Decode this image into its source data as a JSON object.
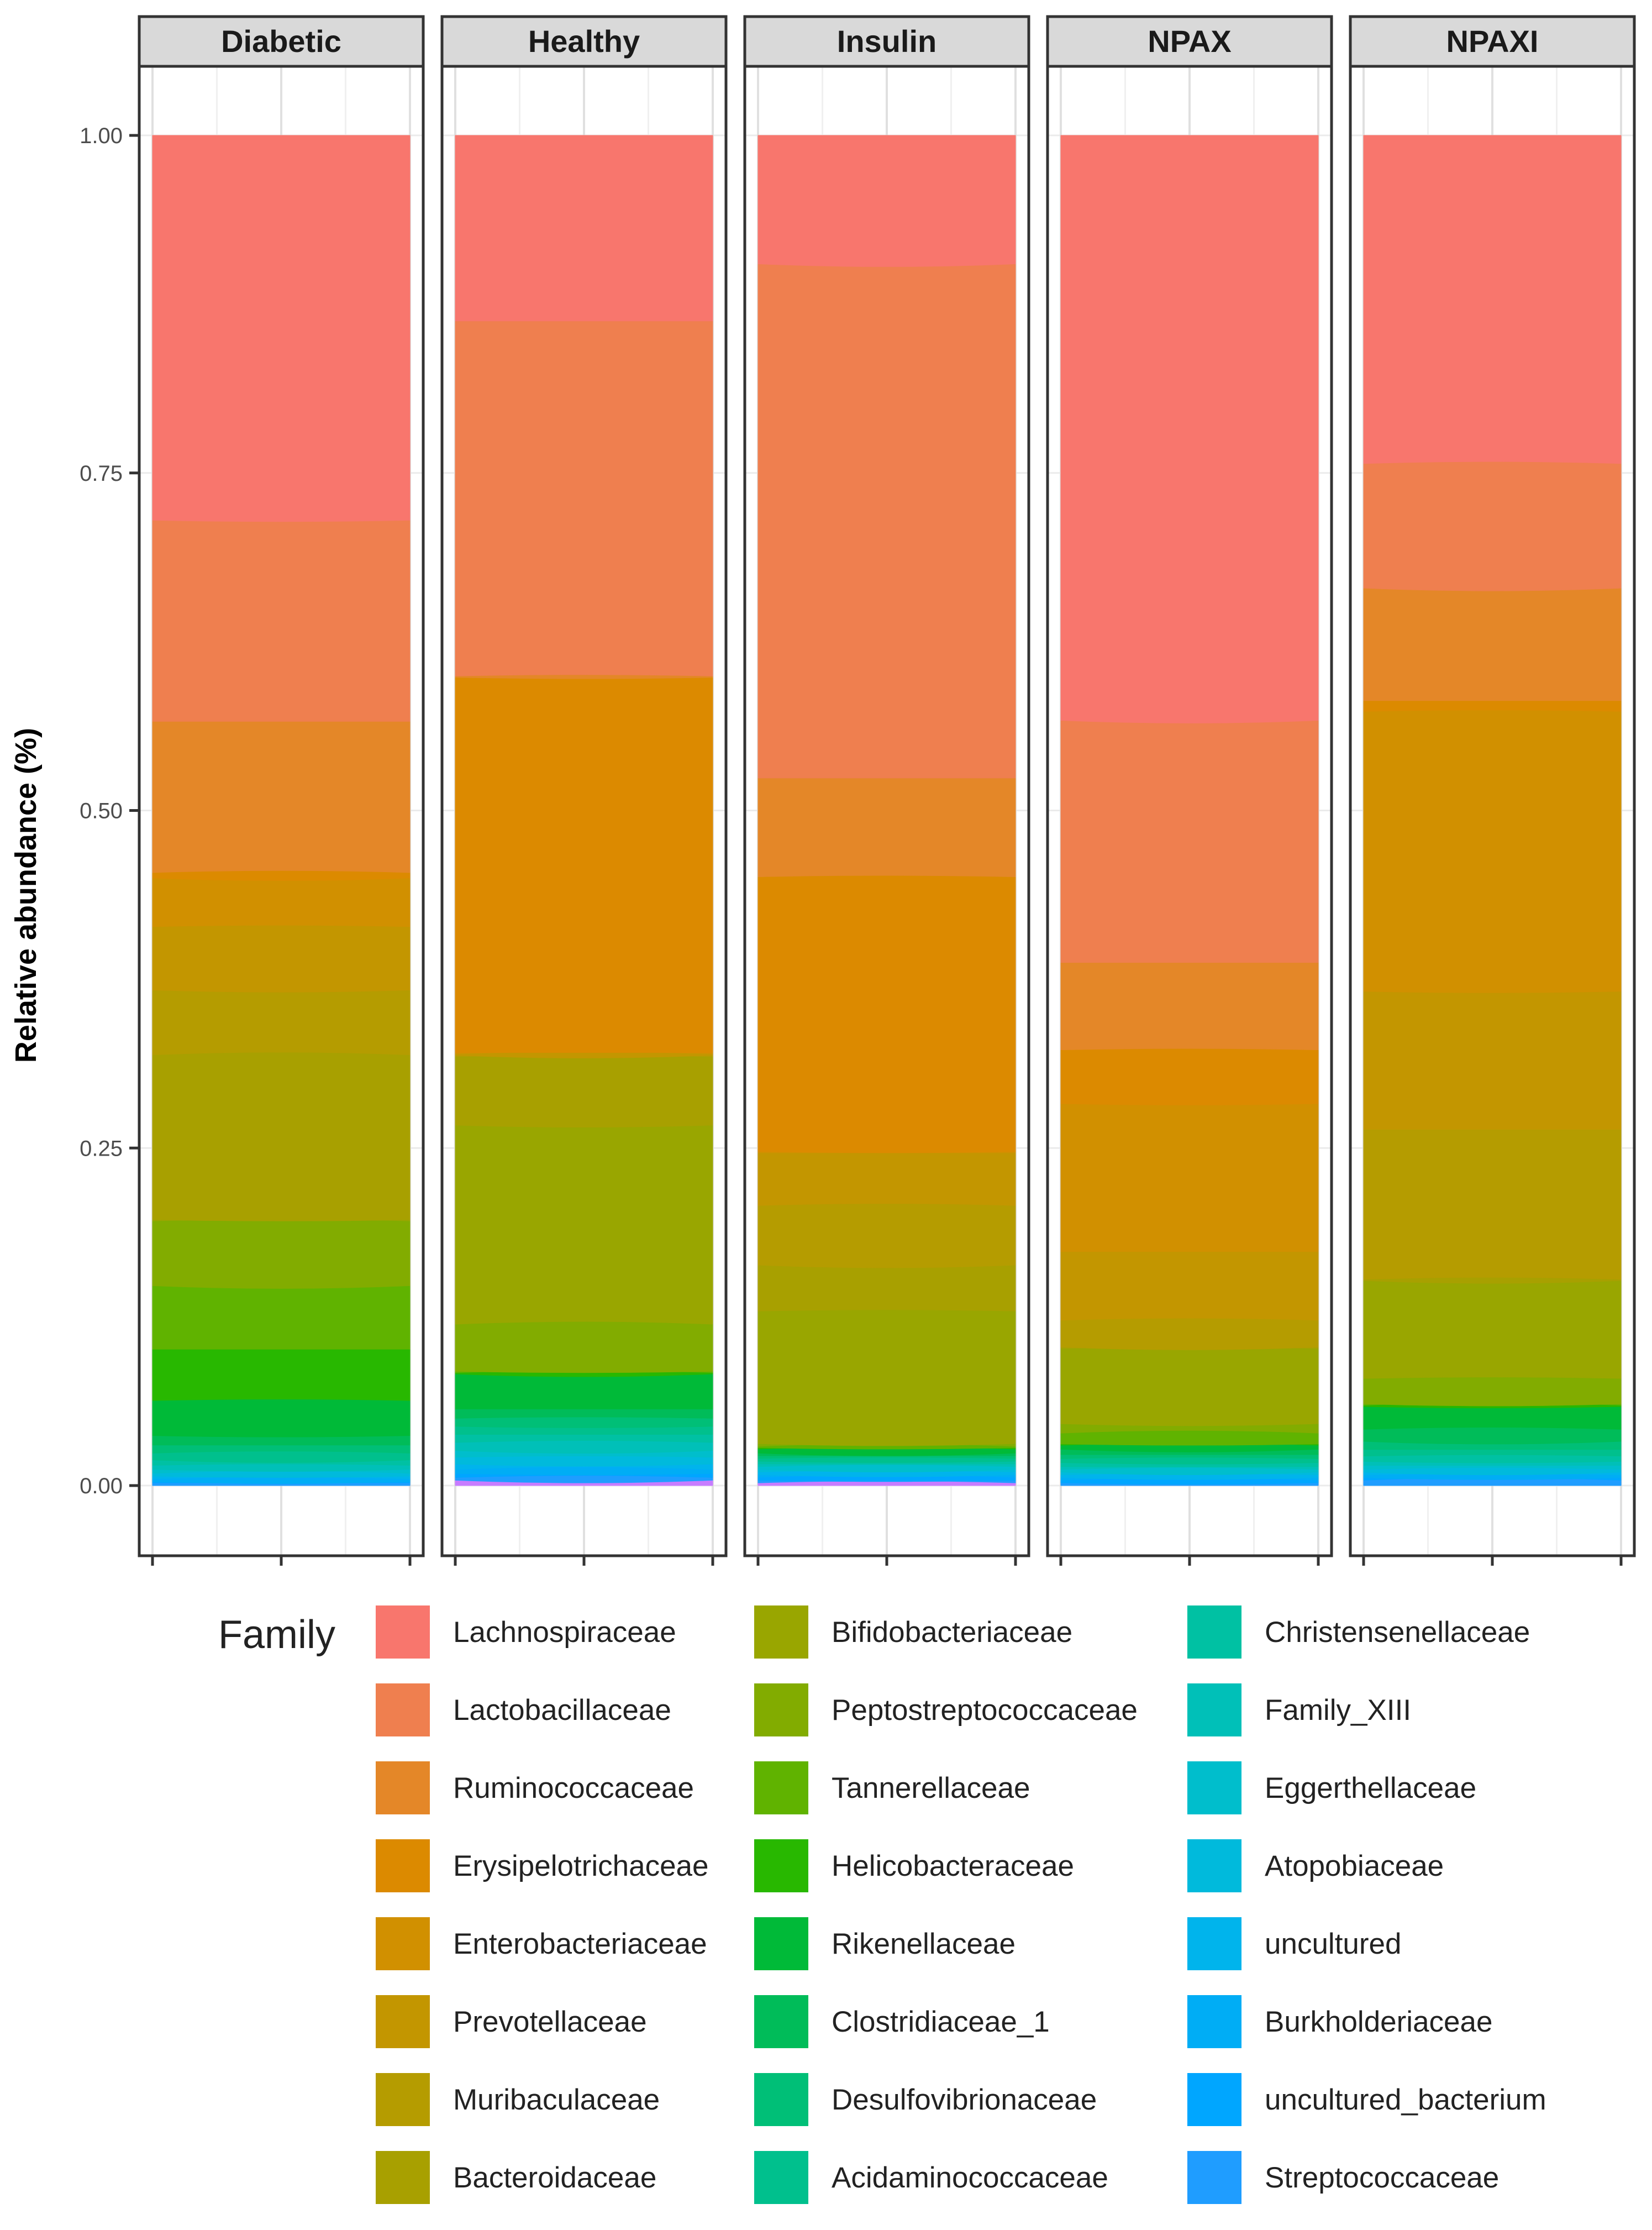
{
  "chart_data": {
    "type": "stacked_area_facets",
    "ylabel": "Relative abundance (%)",
    "ylim": [
      0,
      1.0
    ],
    "yticks": [
      {
        "value": 0.0,
        "label": "0.00"
      },
      {
        "value": 0.25,
        "label": "0.25"
      },
      {
        "value": 0.5,
        "label": "0.50"
      },
      {
        "value": 0.75,
        "label": "0.75"
      },
      {
        "value": 1.0,
        "label": "1.00"
      }
    ],
    "legend": {
      "title": "Family",
      "position": "bottom"
    },
    "families": [
      {
        "name": "Lachnospiraceae",
        "color": "#F8766D"
      },
      {
        "name": "Lactobacillaceae",
        "color": "#EF7F4F"
      },
      {
        "name": "Ruminococcaceae",
        "color": "#E48728"
      },
      {
        "name": "Erysipelotrichaceae",
        "color": "#DC8A00"
      },
      {
        "name": "Enterobacteriaceae",
        "color": "#D19000"
      },
      {
        "name": "Prevotellaceae",
        "color": "#C39600"
      },
      {
        "name": "Muribaculaceae",
        "color": "#B59C00"
      },
      {
        "name": "Bacteroidaceae",
        "color": "#A8A000"
      },
      {
        "name": "Bifidobacteriaceae",
        "color": "#99A600"
      },
      {
        "name": "Peptostreptococcaceae",
        "color": "#82AC00"
      },
      {
        "name": "Tannerellaceae",
        "color": "#60B300"
      },
      {
        "name": "Helicobacteraceae",
        "color": "#28B800"
      },
      {
        "name": "Rikenellaceae",
        "color": "#00BA38"
      },
      {
        "name": "Clostridiaceae_1",
        "color": "#00BC59"
      },
      {
        "name": "Desulfovibrionaceae",
        "color": "#00BF77"
      },
      {
        "name": "Acidaminococcaceae",
        "color": "#00C08D"
      },
      {
        "name": "Christensenellaceae",
        "color": "#00C1A3"
      },
      {
        "name": "Family_XIII",
        "color": "#00C0B8"
      },
      {
        "name": "Eggerthellaceae",
        "color": "#00BECC"
      },
      {
        "name": "Atopobiaceae",
        "color": "#00BADC"
      },
      {
        "name": "uncultured",
        "color": "#00B4EC"
      },
      {
        "name": "Burkholderiaceae",
        "color": "#00ADF5"
      },
      {
        "name": "uncultured_bacterium",
        "color": "#00A6FF"
      },
      {
        "name": "Streptococcaceae",
        "color": "#1F9DFF"
      }
    ],
    "extra_bottom_layer": {
      "name": "",
      "color": "#C77CFF"
    },
    "panels": [
      {
        "title": "Diabetic",
        "values": [
          0.285,
          0.149,
          0.112,
          0.004,
          0.036,
          0.047,
          0.048,
          0.122,
          0.001,
          0.048,
          0.047,
          0.038,
          0.026,
          0.007,
          0.006,
          0.005,
          0.004,
          0.003,
          0.003,
          0.002,
          0.002,
          0.002,
          0.001,
          0.002
        ],
        "extra": 0.0
      },
      {
        "title": "Healthy",
        "values": [
          0.138,
          0.264,
          0.001,
          0.279,
          0.001,
          0.001,
          0.001,
          0.051,
          0.148,
          0.035,
          0.001,
          0.001,
          0.026,
          0.007,
          0.006,
          0.006,
          0.006,
          0.006,
          0.005,
          0.005,
          0.004,
          0.003,
          0.003,
          0.002
        ],
        "extra": 0.004
      },
      {
        "title": "Insulin",
        "values": [
          0.095,
          0.38,
          0.073,
          0.203,
          0.001,
          0.039,
          0.044,
          0.034,
          0.098,
          0.002,
          0.001,
          0.001,
          0.003,
          0.002,
          0.002,
          0.002,
          0.002,
          0.002,
          0.002,
          0.002,
          0.002,
          0.002,
          0.002,
          0.002
        ],
        "extra": 0.002
      },
      {
        "title": "NPAX",
        "values": [
          0.435,
          0.18,
          0.065,
          0.04,
          0.11,
          0.051,
          0.02,
          0.001,
          0.056,
          0.007,
          0.008,
          0.001,
          0.003,
          0.004,
          0.003,
          0.003,
          0.003,
          0.002,
          0.002,
          0.002,
          0.002,
          0.002,
          0.002,
          0.002
        ],
        "extra": 0.0
      },
      {
        "title": "NPAXI",
        "values": [
          0.245,
          0.093,
          0.084,
          0.008,
          0.209,
          0.103,
          0.112,
          0.001,
          0.073,
          0.019,
          0.001,
          0.001,
          0.017,
          0.009,
          0.006,
          0.005,
          0.004,
          0.003,
          0.003,
          0.002,
          0.002,
          0.002,
          0.002,
          0.004
        ],
        "extra": 0.0
      }
    ]
  }
}
